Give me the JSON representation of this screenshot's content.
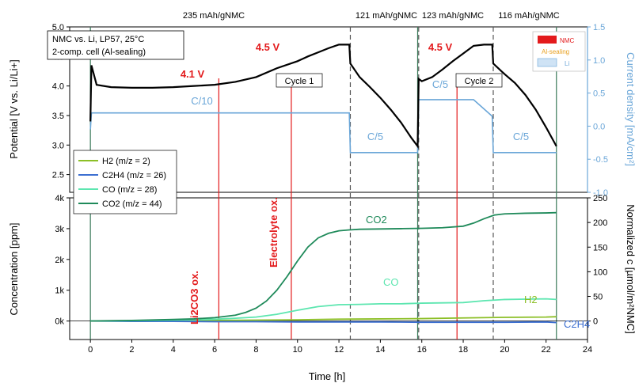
{
  "chart_data": [
    {
      "type": "line",
      "panel": "top",
      "xlabel": "Time [h]",
      "ylabel": "Potential [V vs. Li/Li+]",
      "ylabel_right": "Current density [mA/cm²]",
      "xlim": [
        -1,
        24
      ],
      "ylim": [
        2.2,
        5.0
      ],
      "ylim_right": [
        -1.0,
        1.5
      ],
      "xticks": [
        "0",
        "2",
        "4",
        "6",
        "8",
        "10",
        "12",
        "14",
        "16",
        "18",
        "20",
        "22",
        "24"
      ],
      "yticks": [
        "2.5",
        "3.0",
        "3.5",
        "4.0",
        "4.5",
        "5.0"
      ],
      "yticks_right": [
        "-1.0",
        "-0.5",
        "0.0",
        "0.5",
        "1.0",
        "1.5"
      ],
      "info_box": [
        "NMC vs. Li, LP57, 25°C",
        "2-comp. cell (Al-sealing)"
      ],
      "capacities": [
        "235 mAh/gNMC",
        "121 mAh/gNMC",
        "123 mAh/gNMC",
        "116 mAh/gNMC"
      ],
      "annotations": {
        "v41": "4.1 V",
        "v45a": "4.5 V",
        "v45b": "4.5 V",
        "cycle1": "Cycle 1",
        "cycle2": "Cycle 2",
        "c10": "C/10",
        "c5a": "C/5",
        "c5b": "C/5",
        "c5c": "C/5"
      },
      "legend_items": [
        "NMC",
        "Al-sealing",
        "Li"
      ],
      "series": [
        {
          "name": "Potential",
          "axis": "left",
          "x": [
            0,
            0.05,
            0.3,
            1,
            2,
            3,
            4,
            5,
            6,
            7,
            8,
            9,
            10,
            10.5,
            11,
            11.5,
            12,
            12.5,
            12.55,
            13,
            13.5,
            14,
            14.5,
            15,
            15.5,
            15.8,
            15.85,
            16,
            16.5,
            17,
            17.5,
            18,
            18.5,
            19,
            19.4,
            19.45,
            20,
            20.5,
            21,
            21.5,
            22,
            22.5
          ],
          "y": [
            3.4,
            4.35,
            4.02,
            3.98,
            3.97,
            3.97,
            3.98,
            4.0,
            4.02,
            4.07,
            4.15,
            4.3,
            4.42,
            4.5,
            4.57,
            4.64,
            4.7,
            4.7,
            4.38,
            4.15,
            3.98,
            3.8,
            3.6,
            3.38,
            3.12,
            2.98,
            4.12,
            4.08,
            4.15,
            4.28,
            4.42,
            4.55,
            4.68,
            4.7,
            4.7,
            4.38,
            4.2,
            4.05,
            3.85,
            3.6,
            3.3,
            2.98
          ]
        },
        {
          "name": "Current density",
          "axis": "right",
          "x": [
            0,
            0.05,
            12.5,
            12.55,
            15.8,
            15.85,
            18.5,
            19.4,
            19.45,
            22.5
          ],
          "y": [
            -0.05,
            0.2,
            0.2,
            -0.4,
            -0.4,
            0.4,
            0.4,
            0.15,
            -0.4,
            -0.4
          ]
        }
      ]
    },
    {
      "type": "line",
      "panel": "bottom",
      "xlabel": "Time [h]",
      "ylabel": "Concentration [ppm]",
      "ylabel_right": "Normalized c [µmol/m²NMC]",
      "xlim": [
        -1,
        24
      ],
      "ylim": [
        -600,
        4000
      ],
      "ylim_right": [
        -37.5,
        250
      ],
      "xticks": [
        "0",
        "2",
        "4",
        "6",
        "8",
        "10",
        "12",
        "14",
        "16",
        "18",
        "20",
        "22",
        "24"
      ],
      "yticks": [
        "0k",
        "1k",
        "2k",
        "3k",
        "4k"
      ],
      "yticks_right": [
        "0",
        "50",
        "100",
        "150",
        "200",
        "250"
      ],
      "annotations": {
        "li2co3": "Li2CO3 ox.",
        "electrolyte": "Electrolyte ox.",
        "co2": "CO2",
        "co": "CO",
        "h2": "H2",
        "c2h4": "C2H4"
      },
      "series": [
        {
          "name": "H2 (m/z = 2)",
          "color": "#8cbf26",
          "x": [
            0,
            2,
            4,
            6,
            8,
            10,
            12,
            14,
            16,
            18,
            20,
            22,
            22.5
          ],
          "y": [
            0,
            5,
            10,
            20,
            30,
            40,
            60,
            70,
            80,
            100,
            120,
            130,
            140
          ]
        },
        {
          "name": "C2H4 (m/z = 26)",
          "color": "#3c6fd1",
          "x": [
            0,
            2,
            4,
            6,
            8,
            10,
            12,
            14,
            16,
            18,
            20,
            22,
            22.5
          ],
          "y": [
            0,
            -10,
            -10,
            -20,
            -20,
            -30,
            -30,
            -30,
            -40,
            -40,
            -40,
            -30,
            -50
          ]
        },
        {
          "name": "CO (m/z = 28)",
          "color": "#5de6b0",
          "x": [
            0,
            2,
            4,
            6,
            7,
            8,
            9,
            10,
            11,
            12,
            13,
            14,
            15,
            16,
            17,
            18,
            19,
            20,
            21,
            22,
            22.5
          ],
          "y": [
            0,
            10,
            30,
            60,
            90,
            130,
            220,
            350,
            470,
            530,
            540,
            560,
            560,
            580,
            590,
            600,
            660,
            700,
            710,
            720,
            700
          ]
        },
        {
          "name": "CO2 (m/z = 44)",
          "color": "#1f8a5a",
          "x": [
            0,
            2,
            4,
            5,
            6,
            7,
            7.5,
            8,
            8.5,
            9,
            9.5,
            10,
            10.5,
            11,
            11.5,
            12,
            12.5,
            13,
            14,
            15,
            16,
            17,
            18,
            18.5,
            19,
            19.5,
            20,
            21,
            22,
            22.5
          ],
          "y": [
            0,
            20,
            50,
            70,
            110,
            190,
            280,
            420,
            650,
            1000,
            1450,
            1950,
            2400,
            2700,
            2850,
            2930,
            2960,
            2980,
            2990,
            3000,
            3010,
            3030,
            3080,
            3180,
            3320,
            3440,
            3480,
            3500,
            3510,
            3520
          ]
        }
      ]
    }
  ]
}
